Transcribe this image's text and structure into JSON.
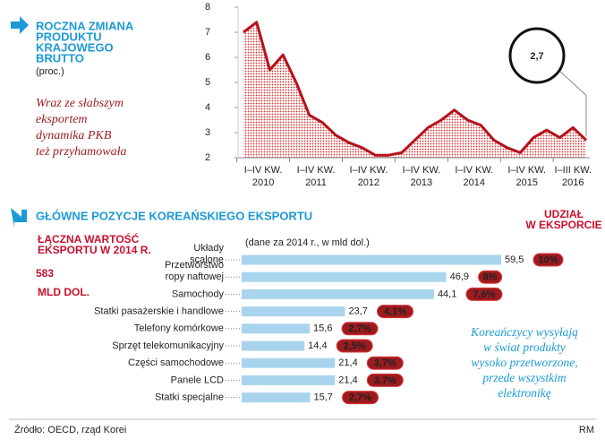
{
  "chart_data": [
    {
      "type": "area",
      "title": [
        "ROCZNA ZMIANA",
        "PRODUKTU",
        "KRAJOWEGO",
        "BRUTTO"
      ],
      "subtitle": "(proc.)",
      "note": [
        "Wraz ze słabszym",
        "eksportem",
        "dynamika PKB",
        "też przyhamowała"
      ],
      "period_labels": [
        [
          "I–IV KW.",
          "2010"
        ],
        [
          "I–IV KW.",
          "2011"
        ],
        [
          "I–IV KW.",
          "2012"
        ],
        [
          "I–IV KW.",
          "2013"
        ],
        [
          "I–IV KW.",
          "2014"
        ],
        [
          "I–IV KW.",
          "2015"
        ],
        [
          "I–III KW.",
          "2016"
        ]
      ],
      "values": [
        7.0,
        7.4,
        5.5,
        6.1,
        5.0,
        3.7,
        3.4,
        2.9,
        2.6,
        2.4,
        2.1,
        2.1,
        2.2,
        2.7,
        3.2,
        3.5,
        3.9,
        3.5,
        3.3,
        2.7,
        2.4,
        2.2,
        2.8,
        3.1,
        2.8,
        3.2,
        2.7
      ],
      "callout": "2,7",
      "color": "#b5121b",
      "ylim": [
        2,
        8
      ],
      "yticks": [
        2,
        3,
        4,
        5,
        6,
        7,
        8
      ]
    },
    {
      "type": "hbar",
      "title": "GŁÓWNE POZYCJE KOREAŃSKIEGO EKSPORTU",
      "total_title": [
        "ŁĄCZNA WARTOŚĆ",
        "EKSPORTU W 2014 R."
      ],
      "total": 583,
      "total_unit": "MLD DOL.",
      "axis_note": "(dane za 2014 r., w mld dol.)",
      "share_title": [
        "UDZIAŁ",
        "W EKSPORCIE"
      ],
      "categories": [
        [
          "Układy",
          "scalone"
        ],
        [
          "Przetwórstwo",
          "ropy naftowej"
        ],
        [
          "Samochody"
        ],
        [
          "Statki pasażerskie i handlowe"
        ],
        [
          "Telefony komórkowe"
        ],
        [
          "Sprzęt telekomunikacyjny"
        ],
        [
          "Części samochodowe"
        ],
        [
          "Panele LCD"
        ],
        [
          "Statki specjalne"
        ]
      ],
      "values": [
        59.5,
        46.9,
        44.1,
        23.7,
        15.6,
        14.4,
        21.4,
        21.4,
        15.7
      ],
      "value_labels": [
        "59,5",
        "46,9",
        "44,1",
        "23,7",
        "15,6",
        "14,4",
        "21,4",
        "21,4",
        "15,7"
      ],
      "share_labels": [
        "10%",
        "8%",
        "7,6%",
        "4,1%",
        "2,7%",
        "2,5%",
        "3,7%",
        "3,7%",
        "2,7%"
      ],
      "color": "#a9d4ee",
      "share_color": "#9b1b1f",
      "note": [
        "Koreańczycy wysyłają",
        "w świat produkty",
        "wysoko przetworzone,",
        "przede wszystkim",
        "elektronikę"
      ]
    }
  ],
  "footer": {
    "source": "Źródło: OECD, rząd Korei",
    "credit": "RM"
  }
}
